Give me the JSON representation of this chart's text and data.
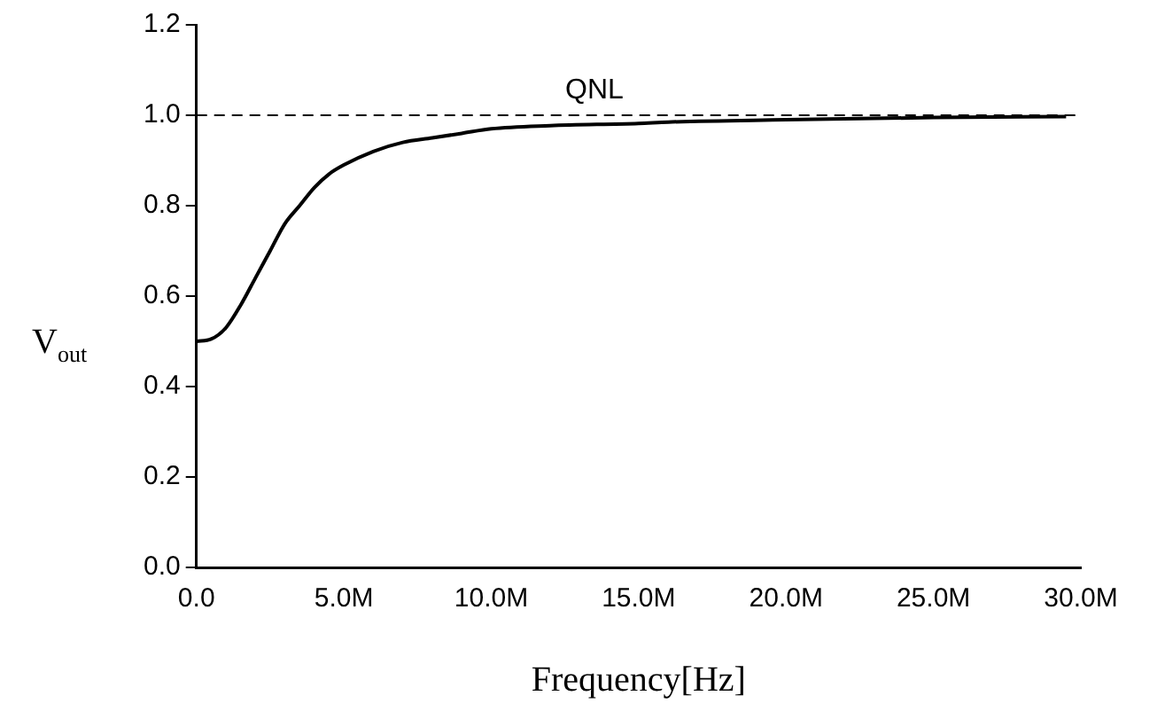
{
  "chart_data": {
    "type": "line",
    "xlabel": "Frequency[Hz]",
    "ylabel": "V$_{out}$",
    "x": [
      0,
      500000,
      1000000,
      1500000,
      2000000,
      2500000,
      3000000,
      3500000,
      4000000,
      4500000,
      5000000,
      6000000,
      7000000,
      8000000,
      9000000,
      10000000,
      12000000,
      15000000,
      16000000,
      20000000,
      25000000,
      29500000
    ],
    "series": [
      {
        "color": "#000000",
        "values": [
          0.5,
          0.505,
          0.53,
          0.58,
          0.64,
          0.7,
          0.76,
          0.8,
          0.84,
          0.87,
          0.89,
          0.92,
          0.94,
          0.95,
          0.96,
          0.97,
          0.977,
          0.982,
          0.985,
          0.99,
          0.995,
          0.997
        ]
      }
    ],
    "xlim": [
      0,
      30000000
    ],
    "xticks": [
      {
        "value": 0,
        "label": "0.0"
      },
      {
        "value": 5000000,
        "label": "5.0M"
      },
      {
        "value": 10000000,
        "label": "10.0M"
      },
      {
        "value": 15000000,
        "label": "15.0M"
      },
      {
        "value": 20000000,
        "label": "20.0M"
      },
      {
        "value": 25000000,
        "label": "25.0M"
      },
      {
        "value": 30000000,
        "label": "30.0M"
      }
    ],
    "ylim": [
      0,
      1.2
    ],
    "yticks": [
      {
        "value": 0,
        "label": "0.0"
      },
      {
        "value": 0.2,
        "label": "0.2"
      },
      {
        "value": 0.4,
        "label": "0.4"
      },
      {
        "value": 0.6,
        "label": "0.6"
      },
      {
        "value": 0.8,
        "label": "0.8"
      },
      {
        "value": 1,
        "label": "1.0"
      },
      {
        "value": 1.2,
        "label": "1.2"
      }
    ],
    "ref_lines": [
      {
        "axis": "y",
        "value": 1,
        "label": "QNL",
        "color": "#000000",
        "line_style": "dashed"
      }
    ],
    "grid": false,
    "legend": false,
    "marker": "none",
    "line_style": "solid"
  }
}
